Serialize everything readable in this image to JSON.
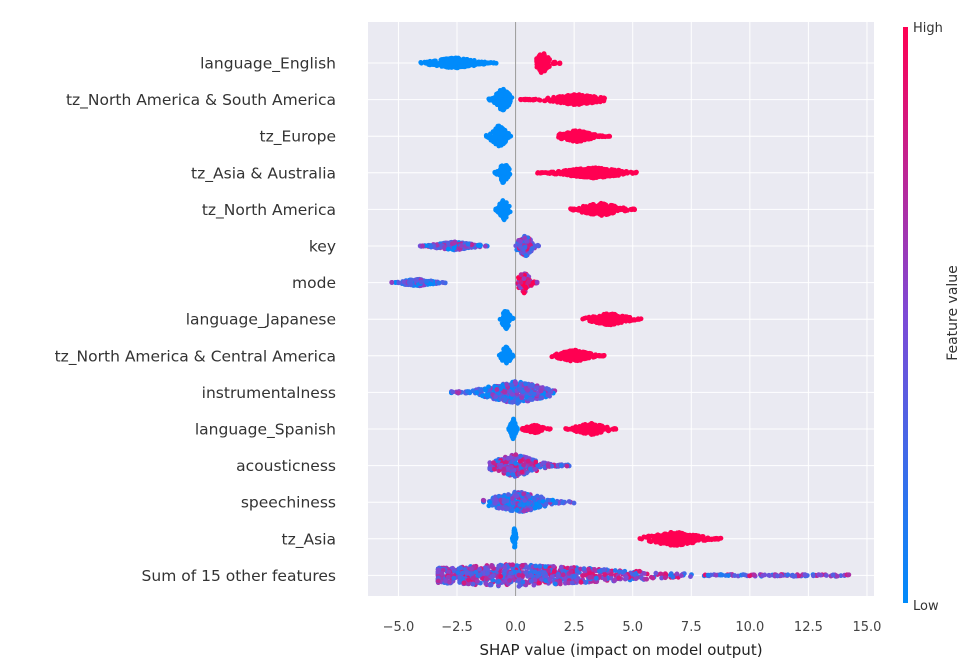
{
  "chart_data": {
    "type": "scatter",
    "subtype": "shap-beeswarm",
    "title": "",
    "xlabel": "SHAP value (impact on model output)",
    "ylabel": "",
    "xlim": [
      -6.3,
      15.3
    ],
    "xticks": [
      -5.0,
      -2.5,
      0.0,
      2.5,
      5.0,
      7.5,
      10.0,
      12.5,
      15.0
    ],
    "xtick_labels": [
      "−5.0",
      "−2.5",
      "0.0",
      "2.5",
      "5.0",
      "7.5",
      "10.0",
      "12.5",
      "15.0"
    ],
    "grid": true,
    "background": "#EAEAF2",
    "reference_line_x": 0,
    "colormap": {
      "low": "#008bfb",
      "high": "#ff0052"
    },
    "colorbar": {
      "title": "Feature value",
      "high_label": "High",
      "low_label": "Low"
    },
    "features": [
      {
        "name": "language_English",
        "clusters": [
          {
            "min": -4.1,
            "max": -0.8,
            "center": -2.6,
            "value": 0.0,
            "spread": 0.45
          },
          {
            "min": 0.9,
            "max": 1.9,
            "center": 1.15,
            "value": 1.0,
            "spread": 0.9
          }
        ]
      },
      {
        "name": "tz_North America & South America",
        "clusters": [
          {
            "min": -1.2,
            "max": -0.1,
            "center": -0.55,
            "value": 0.0,
            "spread": 0.95
          },
          {
            "min": 0.2,
            "max": 3.8,
            "center": 2.6,
            "value": 1.0,
            "spread": 0.45
          }
        ]
      },
      {
        "name": "tz_Europe",
        "clusters": [
          {
            "min": -1.3,
            "max": -0.2,
            "center": -0.7,
            "value": 0.0,
            "spread": 0.95
          },
          {
            "min": 1.8,
            "max": 4.1,
            "center": 2.6,
            "value": 1.0,
            "spread": 0.5
          }
        ]
      },
      {
        "name": "tz_Asia & Australia",
        "clusters": [
          {
            "min": -0.9,
            "max": -0.2,
            "center": -0.5,
            "value": 0.0,
            "spread": 0.95
          },
          {
            "min": 0.9,
            "max": 5.2,
            "center": 3.3,
            "value": 1.0,
            "spread": 0.45
          }
        ]
      },
      {
        "name": "tz_North America",
        "clusters": [
          {
            "min": -0.9,
            "max": -0.2,
            "center": -0.5,
            "value": 0.0,
            "spread": 0.95
          },
          {
            "min": 2.3,
            "max": 5.1,
            "center": 3.6,
            "value": 1.0,
            "spread": 0.55
          }
        ]
      },
      {
        "name": "key",
        "clusters": [
          {
            "min": -4.1,
            "max": -1.2,
            "center": -2.6,
            "value": 0.35,
            "spread": 0.35
          },
          {
            "min": 0.0,
            "max": 1.1,
            "center": 0.4,
            "value": 0.5,
            "spread": 0.95
          }
        ]
      },
      {
        "name": "mode",
        "clusters": [
          {
            "min": -5.3,
            "max": -3.0,
            "center": -4.2,
            "value": 0.25,
            "spread": 0.3
          },
          {
            "min": 0.1,
            "max": 1.0,
            "center": 0.35,
            "value": 0.85,
            "spread": 0.95
          }
        ]
      },
      {
        "name": "language_Japanese",
        "clusters": [
          {
            "min": -0.7,
            "max": -0.1,
            "center": -0.4,
            "value": 0.0,
            "spread": 0.9
          },
          {
            "min": 2.8,
            "max": 5.4,
            "center": 4.0,
            "value": 1.0,
            "spread": 0.5
          }
        ]
      },
      {
        "name": "tz_North America & Central America",
        "clusters": [
          {
            "min": -0.7,
            "max": -0.1,
            "center": -0.4,
            "value": 0.0,
            "spread": 0.9
          },
          {
            "min": 1.5,
            "max": 3.8,
            "center": 2.5,
            "value": 1.0,
            "spread": 0.5
          }
        ]
      },
      {
        "name": "instrumentalness",
        "clusters": [
          {
            "min": -2.8,
            "max": 1.7,
            "center": 0.0,
            "value": 0.3,
            "spread": 0.95
          }
        ]
      },
      {
        "name": "language_Spanish",
        "clusters": [
          {
            "min": -0.3,
            "max": 0.1,
            "center": -0.1,
            "value": 0.0,
            "spread": 0.9
          },
          {
            "min": 0.2,
            "max": 1.5,
            "center": 0.8,
            "value": 1.0,
            "spread": 0.35
          },
          {
            "min": 2.1,
            "max": 4.3,
            "center": 3.2,
            "value": 1.0,
            "spread": 0.5
          }
        ]
      },
      {
        "name": "acousticness",
        "clusters": [
          {
            "min": -1.1,
            "max": 2.3,
            "center": 0.0,
            "value": 0.5,
            "spread": 0.95
          }
        ]
      },
      {
        "name": "speechiness",
        "clusters": [
          {
            "min": -1.4,
            "max": 2.5,
            "center": 0.1,
            "value": 0.3,
            "spread": 0.9
          }
        ]
      },
      {
        "name": "tz_Asia",
        "clusters": [
          {
            "min": -0.15,
            "max": 0.05,
            "center": -0.05,
            "value": 0.0,
            "spread": 0.95
          },
          {
            "min": 5.2,
            "max": 8.8,
            "center": 6.8,
            "value": 1.0,
            "spread": 0.6
          }
        ]
      },
      {
        "name": "Sum of 15 other features",
        "clusters": [
          {
            "min": -3.3,
            "max": 14.4,
            "center": -0.2,
            "value": 0.5,
            "spread": 0.95
          }
        ]
      }
    ]
  }
}
